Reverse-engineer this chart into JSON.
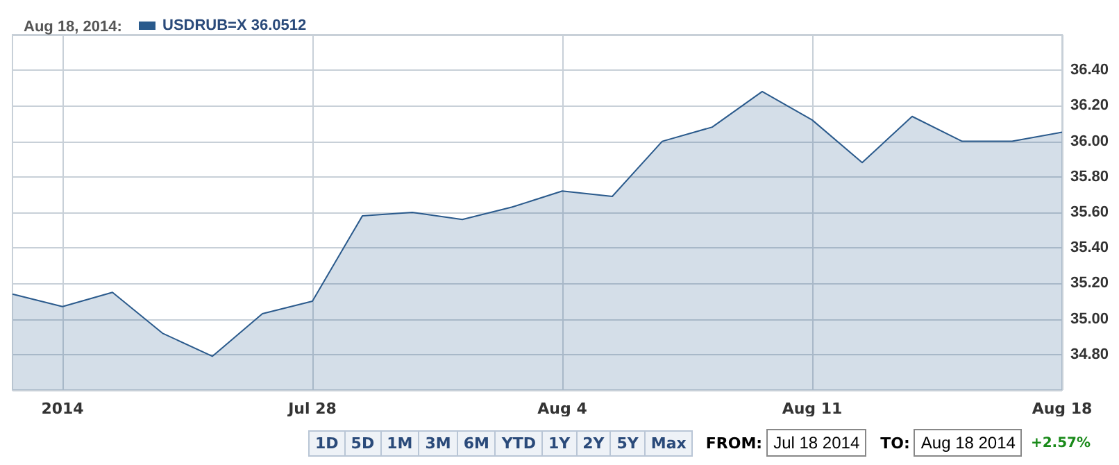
{
  "chart_data": {
    "type": "area",
    "title": "Aug 18, 2014:",
    "categories": [
      null,
      "2014",
      null,
      null,
      null,
      null,
      "Jul 28",
      null,
      null,
      null,
      null,
      "Aug 4",
      null,
      null,
      null,
      null,
      "Aug 11",
      null,
      null,
      null,
      null,
      "Aug 18"
    ],
    "series": [
      {
        "name": "USDRUB=X 36.0512",
        "color": "#2a5a8c",
        "values": [
          35.14,
          35.07,
          35.15,
          34.92,
          34.79,
          35.03,
          35.1,
          35.58,
          35.6,
          35.56,
          35.63,
          35.72,
          35.69,
          36.0,
          36.08,
          36.28,
          36.12,
          35.88,
          36.14,
          36.0,
          36.0,
          36.0512
        ]
      }
    ],
    "ylim": [
      34.6,
      36.6
    ],
    "yticks": [
      {
        "value": 34.6,
        "label": null
      },
      {
        "value": 34.8,
        "label": "34.80"
      },
      {
        "value": 35,
        "label": "35.00"
      },
      {
        "value": 35.2,
        "label": "35.20"
      },
      {
        "value": 35.4,
        "label": "35.40"
      },
      {
        "value": 35.6,
        "label": "35.60"
      },
      {
        "value": 35.8,
        "label": "35.80"
      },
      {
        "value": 36,
        "label": "36.00"
      },
      {
        "value": 36.2,
        "label": "36.20"
      },
      {
        "value": 36.4,
        "label": "36.40"
      },
      {
        "value": 36.6,
        "label": null
      }
    ],
    "grid": true,
    "legend": "top left",
    "marker": "none",
    "line_style": "solid",
    "annotations": [
      "1D",
      "5D",
      "1M",
      "3M",
      "6M",
      "YTD",
      "1Y",
      "2Y",
      "5Y",
      "Max",
      "FROM:",
      "Jul 18 2014",
      "TO:",
      "Aug 18 2014",
      "+2.57%"
    ]
  }
}
